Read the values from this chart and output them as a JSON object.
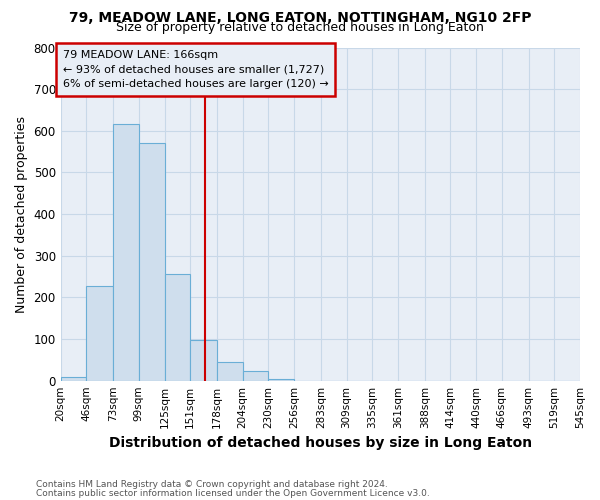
{
  "title1": "79, MEADOW LANE, LONG EATON, NOTTINGHAM, NG10 2FP",
  "title2": "Size of property relative to detached houses in Long Eaton",
  "xlabel": "Distribution of detached houses by size in Long Eaton",
  "ylabel": "Number of detached properties",
  "footnote1": "Contains HM Land Registry data © Crown copyright and database right 2024.",
  "footnote2": "Contains public sector information licensed under the Open Government Licence v3.0.",
  "bar_edges": [
    20,
    46,
    73,
    99,
    125,
    151,
    178,
    204,
    230,
    256,
    283,
    309,
    335,
    361,
    388,
    414,
    440,
    466,
    493,
    519,
    545
  ],
  "bar_heights": [
    10,
    228,
    617,
    570,
    255,
    97,
    46,
    24,
    5,
    0,
    0,
    0,
    0,
    0,
    0,
    0,
    0,
    0,
    0,
    0
  ],
  "bar_color": "#cfdeed",
  "bar_edgecolor": "#6aaed6",
  "grid_color": "#c8d8e8",
  "bg_color": "#ffffff",
  "plot_bg_color": "#e8eef6",
  "property_size": 166,
  "vline_color": "#cc0000",
  "annotation_text": "79 MEADOW LANE: 166sqm\n← 93% of detached houses are smaller (1,727)\n6% of semi-detached houses are larger (120) →",
  "annotation_box_color": "#cc0000",
  "ylim": [
    0,
    800
  ],
  "yticks": [
    0,
    100,
    200,
    300,
    400,
    500,
    600,
    700,
    800
  ],
  "xtick_labels": [
    "20sqm",
    "46sqm",
    "73sqm",
    "99sqm",
    "125sqm",
    "151sqm",
    "178sqm",
    "204sqm",
    "230sqm",
    "256sqm",
    "283sqm",
    "309sqm",
    "335sqm",
    "361sqm",
    "388sqm",
    "414sqm",
    "440sqm",
    "466sqm",
    "493sqm",
    "519sqm",
    "545sqm"
  ]
}
